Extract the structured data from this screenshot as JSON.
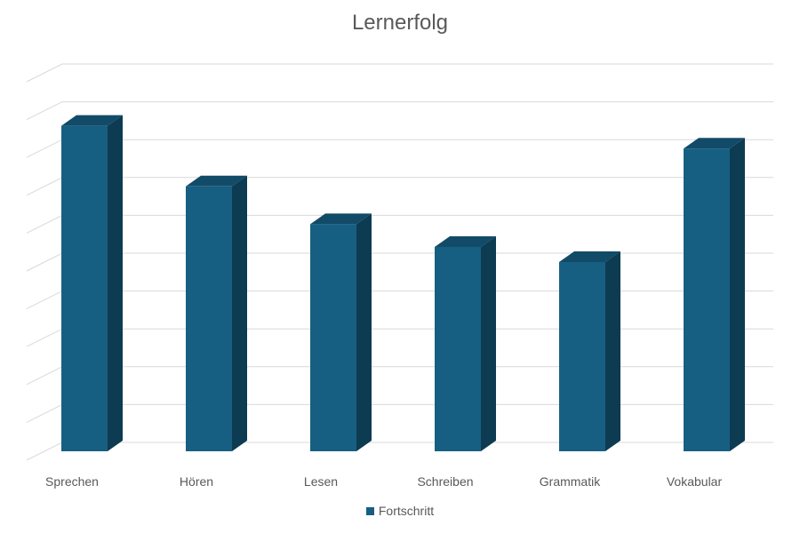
{
  "chart_data": {
    "type": "bar",
    "title": "Lernerfolg",
    "categories": [
      "Sprechen",
      "Hören",
      "Lesen",
      "Schreiben",
      "Grammatik",
      "Vokabular"
    ],
    "series": [
      {
        "name": "Fortschritt",
        "values": [
          86,
          70,
          60,
          54,
          50,
          80
        ]
      }
    ],
    "ylim": [
      0,
      100
    ],
    "grid": true,
    "legend": "bottom",
    "three_d": true,
    "colors": {
      "bar_front": "#175f82",
      "bar_side": "#0d3b52",
      "bar_top": "#124b68",
      "grid": "#d9d9d9",
      "text": "#595959"
    }
  }
}
